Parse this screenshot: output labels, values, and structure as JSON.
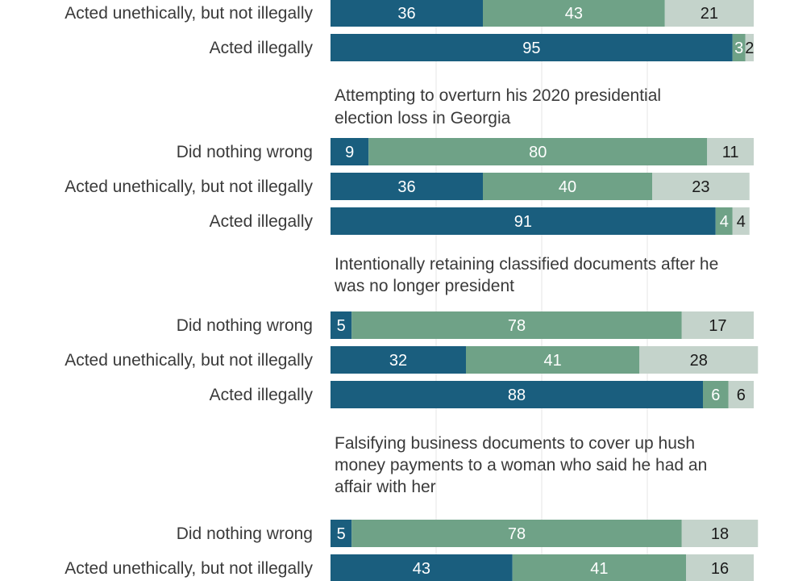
{
  "chart_data": {
    "type": "stacked-horizontal-bar",
    "colors": {
      "seg0": "#1a5e7e",
      "seg1": "#6fa287",
      "seg2": "#c4d3cb",
      "label_on_dark": "#ffffff",
      "label_on_light": "#1a1a1a",
      "grid": "#e6e6e6"
    },
    "scale_max": 100,
    "groups": [
      {
        "title": "",
        "rows": [
          {
            "label": "Acted unethically, but not illegally",
            "values": [
              36,
              43,
              21
            ]
          },
          {
            "label": "Acted illegally",
            "values": [
              95,
              3,
              2
            ]
          }
        ]
      },
      {
        "title": "Attempting to overturn his 2020 presidential election loss in Georgia",
        "rows": [
          {
            "label": "Did nothing wrong",
            "values": [
              9,
              80,
              11
            ]
          },
          {
            "label": "Acted unethically, but not illegally",
            "values": [
              36,
              40,
              23
            ]
          },
          {
            "label": "Acted illegally",
            "values": [
              91,
              4,
              4
            ]
          }
        ]
      },
      {
        "title": "Intentionally retaining classified documents after he was no longer president",
        "rows": [
          {
            "label": "Did nothing wrong",
            "values": [
              5,
              78,
              17
            ]
          },
          {
            "label": "Acted unethically, but not illegally",
            "values": [
              32,
              41,
              28
            ]
          },
          {
            "label": "Acted illegally",
            "values": [
              88,
              6,
              6
            ]
          }
        ]
      },
      {
        "title": "Falsifying business documents to cover up hush money payments to a woman who said he had an affair with her",
        "rows": [
          {
            "label": "Did nothing wrong",
            "values": [
              5,
              78,
              18
            ]
          },
          {
            "label": "Acted unethically, but not illegally",
            "values": [
              43,
              41,
              16
            ]
          }
        ]
      }
    ]
  }
}
